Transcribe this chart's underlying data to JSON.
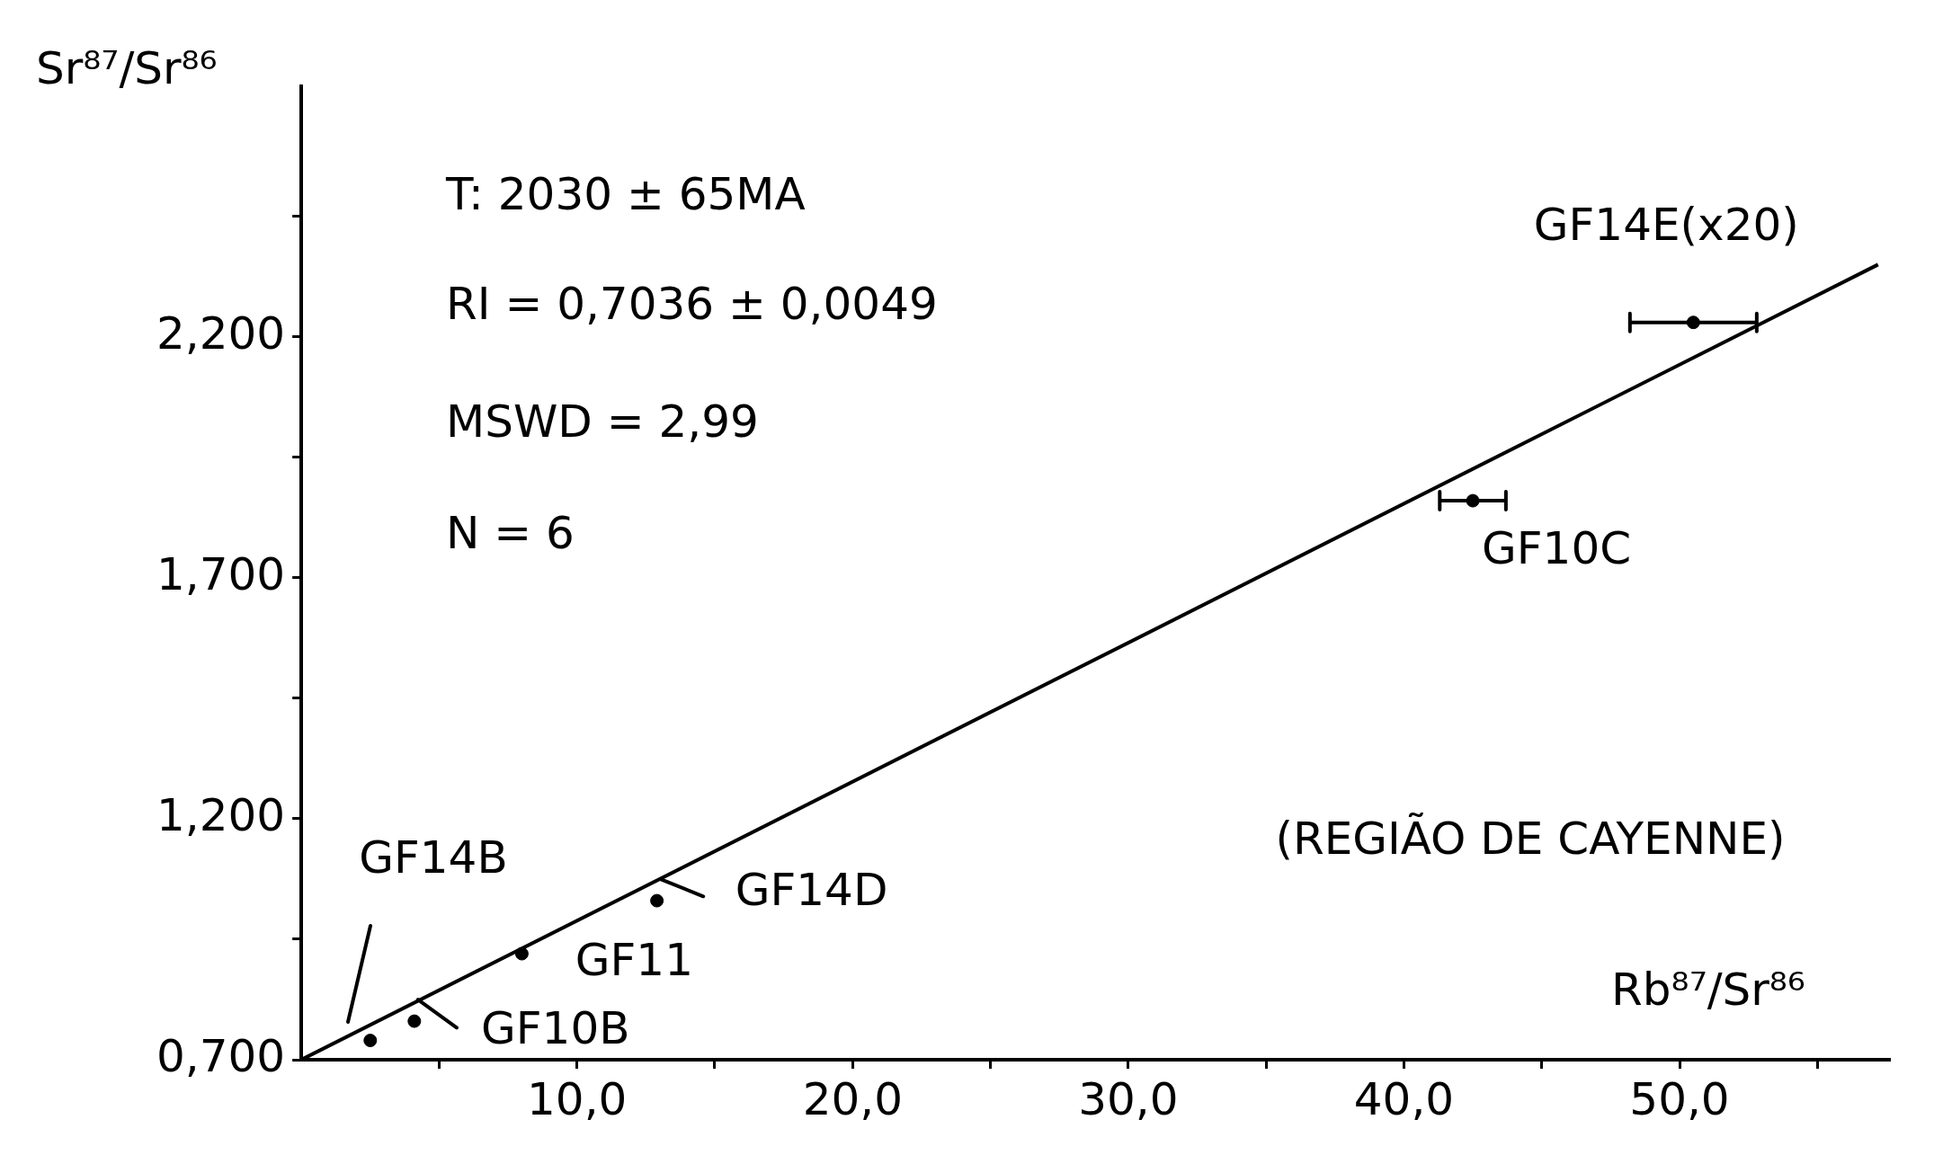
{
  "chart_data": {
    "type": "scatter",
    "xlabel": "Rb⁸⁷/Sr⁸⁶",
    "ylabel": "Sr⁸⁷/Sr⁸⁶",
    "xlim": [
      0,
      57.6
    ],
    "ylim": [
      0.7,
      2.72
    ],
    "xticks": [
      {
        "value": 5,
        "label": null
      },
      {
        "value": 10,
        "label": "10,0"
      },
      {
        "value": 15,
        "label": null
      },
      {
        "value": 20,
        "label": "20,0"
      },
      {
        "value": 25,
        "label": null
      },
      {
        "value": 30,
        "label": "30,0"
      },
      {
        "value": 35,
        "label": null
      },
      {
        "value": 40,
        "label": "40,0"
      },
      {
        "value": 45,
        "label": null
      },
      {
        "value": 50,
        "label": "50,0"
      },
      {
        "value": 55,
        "label": null
      }
    ],
    "yticks": [
      {
        "value": 0.7,
        "label": "0,700"
      },
      {
        "value": 0.95,
        "label": null
      },
      {
        "value": 1.2,
        "label": "1,200"
      },
      {
        "value": 1.45,
        "label": null
      },
      {
        "value": 1.7,
        "label": "1,700"
      },
      {
        "value": 1.95,
        "label": null
      },
      {
        "value": 2.2,
        "label": "2,200"
      },
      {
        "value": 2.45,
        "label": null
      }
    ],
    "series": [
      {
        "type": "scatter",
        "color": "#000000",
        "marker": "circle",
        "x": [
          2.5,
          4.1,
          8.0,
          12.9,
          42.5,
          50.5
        ],
        "values": [
          0.74,
          0.78,
          0.92,
          1.03,
          1.86,
          2.23
        ],
        "xerrors": [
          null,
          null,
          null,
          null,
          1.2,
          2.3
        ]
      },
      {
        "type": "line",
        "color": "#000000",
        "marker": "none",
        "x": [
          0,
          57.2
        ],
        "values": [
          0.7,
          2.35
        ]
      }
    ],
    "annotations": [
      "T: 2030 ± 65MA",
      "RI = 0,7036 ± 0,0049",
      "MSWD = 2,99",
      "N = 6",
      "(REGIÃO DE CAYENNE)",
      "GF14B",
      {
        "text": "GF10B",
        "x": 4.1,
        "y": 0.78
      },
      {
        "text": "GF11",
        "x": 8.0,
        "y": 0.92
      },
      {
        "text": "GF14D",
        "x": 12.9,
        "y": 1.03
      },
      {
        "text": "GF10C",
        "x": 42.5,
        "y": 1.86
      },
      {
        "text": "GF14E(x20)",
        "x": 50.5,
        "y": 2.23
      }
    ],
    "grid": false,
    "legend": false
  }
}
